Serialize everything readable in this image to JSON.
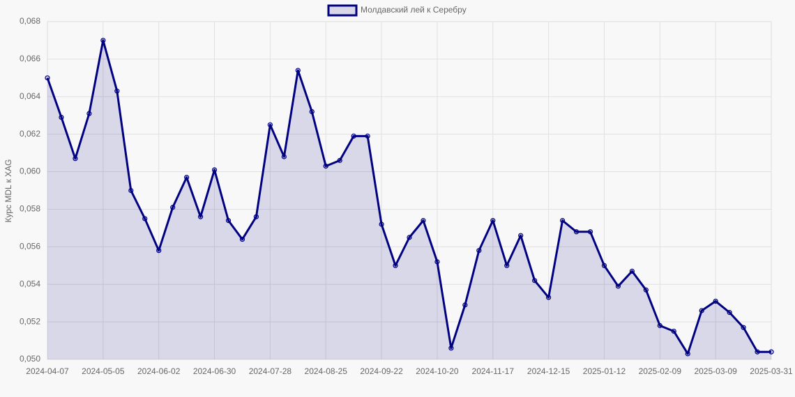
{
  "chart_data": {
    "type": "line",
    "y_label": "Курс MDL к XAG",
    "categories": [
      "2024-04-07",
      null,
      null,
      null,
      "2024-05-05",
      null,
      null,
      null,
      "2024-06-02",
      null,
      null,
      null,
      "2024-06-30",
      null,
      null,
      null,
      "2024-07-28",
      null,
      null,
      null,
      "2024-08-25",
      null,
      null,
      null,
      "2024-09-22",
      null,
      null,
      null,
      "2024-10-20",
      null,
      null,
      null,
      "2024-11-17",
      null,
      null,
      null,
      "2024-12-15",
      null,
      null,
      null,
      "2025-01-12",
      null,
      null,
      null,
      "2025-02-09",
      null,
      null,
      null,
      "2025-03-09",
      null,
      null,
      null,
      "2025-03-31"
    ],
    "series": [
      {
        "name": "Молдавский лей к Серебру",
        "color": "#000080",
        "fill": "rgba(0,0,128,0.13)",
        "values": [
          0.065,
          0.0629,
          0.0607,
          0.0631,
          0.067,
          0.0643,
          0.059,
          0.0575,
          0.0558,
          0.0581,
          0.0597,
          0.0576,
          0.0601,
          0.0574,
          0.0564,
          0.0576,
          0.0625,
          0.0608,
          0.0654,
          0.0632,
          0.0603,
          0.0606,
          0.0619,
          0.0619,
          0.0572,
          0.055,
          0.0565,
          0.0574,
          0.0552,
          0.0506,
          0.0529,
          0.0558,
          0.0574,
          0.055,
          0.0566,
          0.0542,
          0.0533,
          0.0574,
          0.0568,
          0.0568,
          0.055,
          0.0539,
          0.0547,
          0.0537,
          0.0518,
          0.0515,
          0.0503,
          0.0526,
          0.0531,
          0.0525,
          0.0517,
          0.0504,
          0.0504
        ]
      }
    ],
    "ylim": [
      0.05,
      0.068
    ],
    "yticks": [
      {
        "value": 0.05,
        "label": "0,050"
      },
      {
        "value": 0.052,
        "label": "0,052"
      },
      {
        "value": 0.054,
        "label": "0,054"
      },
      {
        "value": 0.056,
        "label": "0,056"
      },
      {
        "value": 0.058,
        "label": "0,058"
      },
      {
        "value": 0.06,
        "label": "0,060"
      },
      {
        "value": 0.062,
        "label": "0,062"
      },
      {
        "value": 0.064,
        "label": "0,064"
      },
      {
        "value": 0.066,
        "label": "0,066"
      },
      {
        "value": 0.068,
        "label": "0,068"
      }
    ],
    "grid": true,
    "legend": "top"
  }
}
